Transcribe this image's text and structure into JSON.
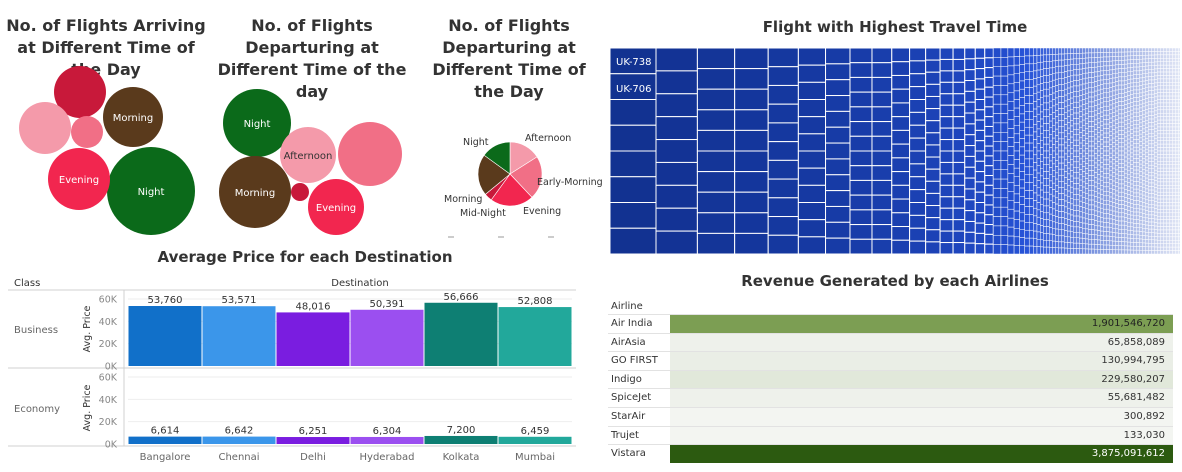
{
  "titles": {
    "arriving": "No. of  Flights Arriving at Different Time of the Day",
    "departing_bubble": "No. of  Flights Departuring at Different Time of the day",
    "departing_pie": "No. of  Flights Departuring at Different Time of the Day",
    "treemap": "Flight with Highest Travel Time",
    "avg_price": "Average Price for each Destination",
    "revenue": "Revenue Generated by each Airlines"
  },
  "chart_data": [
    {
      "type": "bubble",
      "id": "arriving",
      "title": "No. of  Flights Arriving at Different Time of the Day",
      "labels": [
        "Night",
        "Morning",
        "Evening",
        "",
        "",
        ""
      ],
      "colors": [
        "#0b6a1a",
        "#5a3a1c",
        "#f2264f",
        "#c8193a",
        "#f49aaa",
        "#f16f86"
      ]
    },
    {
      "type": "bubble",
      "id": "departing_bubble",
      "title": "No. of  Flights Departuring at Different Time of the day",
      "labels": [
        "Night",
        "Afternoon",
        "Morning",
        "Evening",
        "",
        ""
      ],
      "colors": [
        "#0b6a1a",
        "#f49aaa",
        "#5a3a1c",
        "#f2264f",
        "#f16f86",
        "#c8193a"
      ]
    },
    {
      "type": "pie",
      "id": "departing_pie",
      "title": "No. of  Flights Departuring at Different Time of the Day",
      "labels": [
        "Afternoon",
        "Early-Morning",
        "Evening",
        "Mid-Night",
        "Morning",
        "Night"
      ],
      "values": [
        16,
        22,
        22,
        4,
        21,
        15
      ],
      "colors": [
        "#f49aaa",
        "#f16f86",
        "#f2264f",
        "#c8193a",
        "#5a3a1c",
        "#0b6a1a"
      ]
    },
    {
      "type": "treemap",
      "id": "treemap",
      "title": "Flight with Highest Travel Time",
      "visible_labels": [
        "UK-738",
        "UK-706"
      ]
    },
    {
      "type": "bar",
      "id": "avg_price",
      "title": "Average Price for each Destination",
      "column_header": "Destination",
      "row_header": "Class",
      "ylabel": "Avg. Price",
      "categories": [
        "Bangalore",
        "Chennai",
        "Delhi",
        "Hyderabad",
        "Kolkata",
        "Mumbai"
      ],
      "colors": [
        "#1170c9",
        "#3b96ea",
        "#7a1de0",
        "#9b4ff0",
        "#0e7f73",
        "#22a89b"
      ],
      "ylim": [
        0,
        60000
      ],
      "yticks": [
        0,
        20000,
        40000,
        60000
      ],
      "ytick_labels": [
        "0K",
        "20K",
        "40K",
        "60K"
      ],
      "series": [
        {
          "name": "Business",
          "values": [
            53760,
            53571,
            48016,
            50391,
            56666,
            52808
          ],
          "labels": [
            "53,760",
            "53,571",
            "48,016",
            "50,391",
            "56,666",
            "52,808"
          ]
        },
        {
          "name": "Economy",
          "values": [
            6614,
            6642,
            6251,
            6304,
            7200,
            6459
          ],
          "labels": [
            "6,614",
            "6,642",
            "6,251",
            "6,304",
            "7,200",
            "6,459"
          ]
        }
      ]
    },
    {
      "type": "table",
      "id": "revenue",
      "title": "Revenue Generated by each Airlines",
      "column_header": "Airline",
      "rows": [
        {
          "airline": "Air India",
          "revenue": 1901546720,
          "label": "1,901,546,720",
          "color": "#7c9e53"
        },
        {
          "airline": "AirAsia",
          "revenue": 65858089,
          "label": "65,858,089",
          "color": "#eef1eb"
        },
        {
          "airline": "GO FIRST",
          "revenue": 130994795,
          "label": "130,994,795",
          "color": "#eaeee6"
        },
        {
          "airline": "Indigo",
          "revenue": 229580207,
          "label": "229,580,207",
          "color": "#e1e8da"
        },
        {
          "airline": "SpiceJet",
          "revenue": 55681482,
          "label": "55,681,482",
          "color": "#eef1eb"
        },
        {
          "airline": "StarAir",
          "revenue": 300892,
          "label": "300,892",
          "color": "#f3f5f1"
        },
        {
          "airline": "Trujet",
          "revenue": 133030,
          "label": "133,030",
          "color": "#f3f5f1"
        },
        {
          "airline": "Vistara",
          "revenue": 3875091612,
          "label": "3,875,091,612",
          "color": "#2c5a10"
        }
      ]
    }
  ]
}
